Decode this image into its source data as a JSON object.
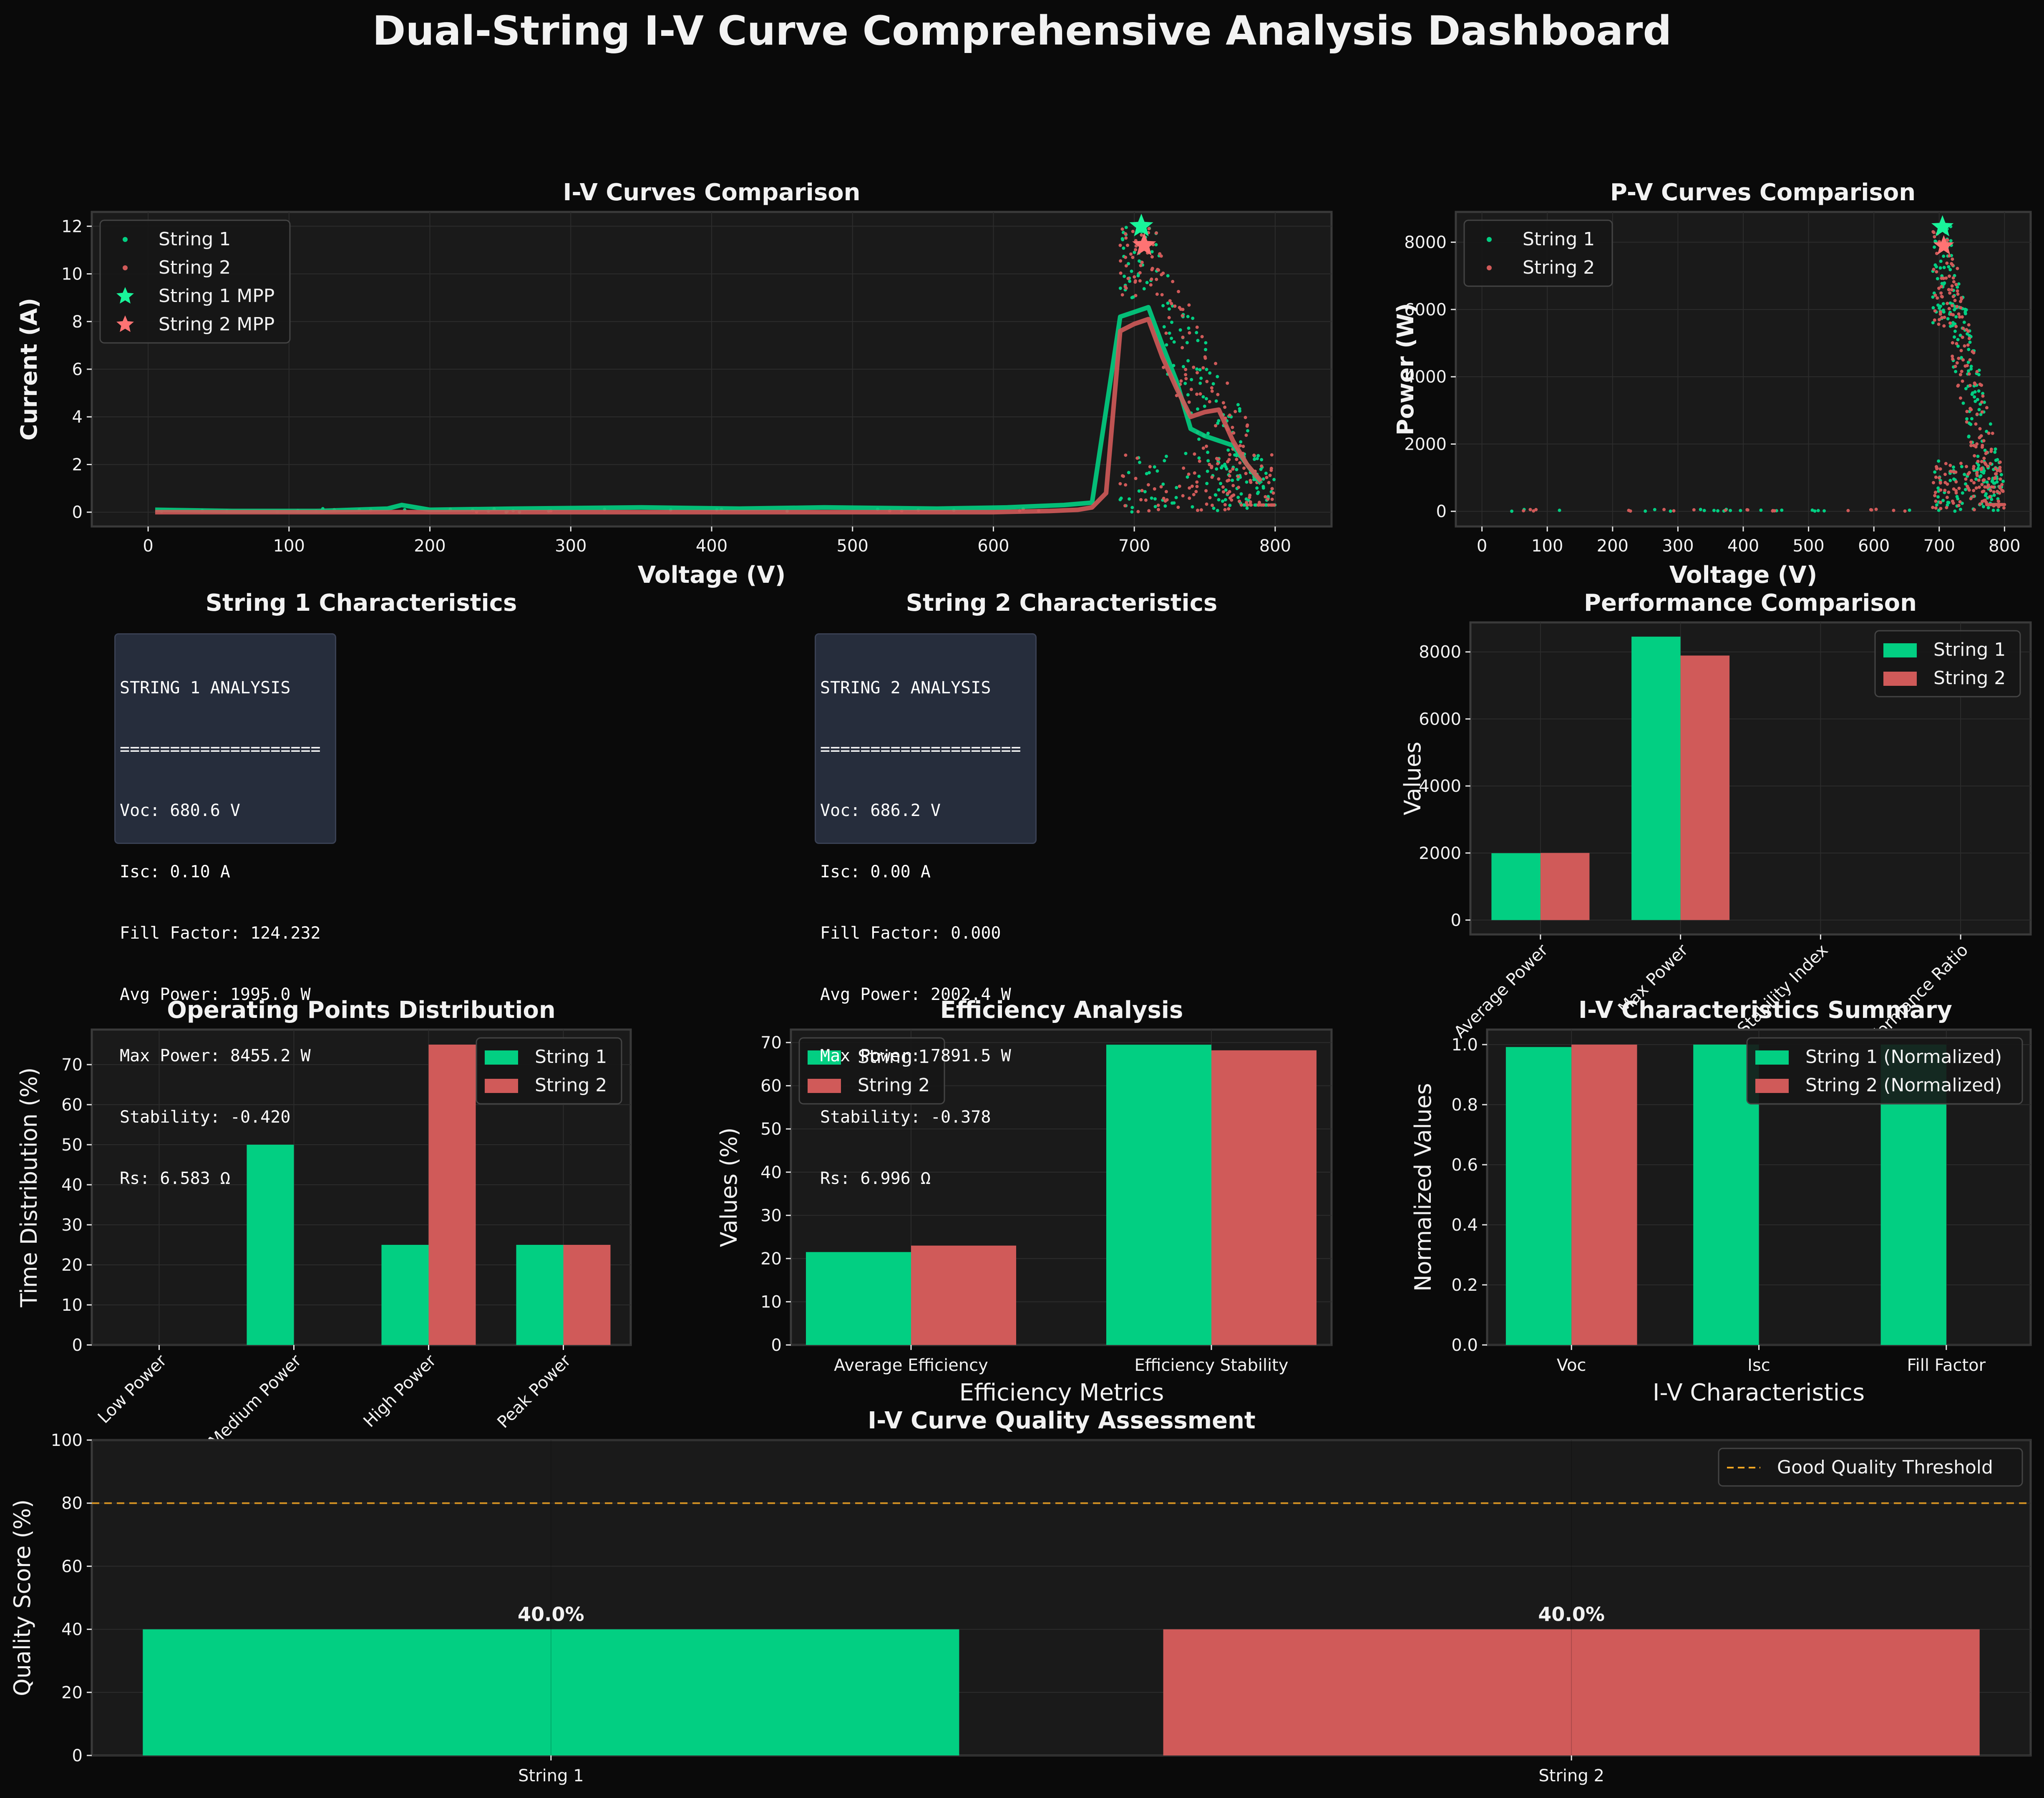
{
  "title": "Dual-String I-V Curve Comprehensive Analysis Dashboard",
  "colors": {
    "s1": "#02cf82",
    "s2": "#d05a59",
    "s1_bright": "#19f59a",
    "s2_bright": "#ff7373",
    "threshold": "#f5a623",
    "bg": "#0a0a0a",
    "panel": "#1a1a1a",
    "text": "#f2f2f2"
  },
  "stats_panels": [
    {
      "title": "String 1 Characteristics",
      "lines": [
        "STRING 1 ANALYSIS",
        "====================",
        "Voc: 680.6 V",
        "Isc: 0.10 A",
        "Fill Factor: 124.232",
        "Avg Power: 1995.0 W",
        "Max Power: 8455.2 W",
        "Stability: -0.420",
        "Rs: 6.583 Ω"
      ]
    },
    {
      "title": "String 2 Characteristics",
      "lines": [
        "STRING 2 ANALYSIS",
        "====================",
        "Voc: 686.2 V",
        "Isc: 0.00 A",
        "Fill Factor: 0.000",
        "Avg Power: 2002.4 W",
        "Max Power: 7891.5 W",
        "Stability: -0.378",
        "Rs: 6.996 Ω"
      ]
    }
  ],
  "chart_data": [
    {
      "id": "iv",
      "type": "line",
      "title": "I-V Curves Comparison",
      "xlabel": "Voltage (V)",
      "ylabel": "Current (A)",
      "xlim": [
        -40,
        840
      ],
      "ylim": [
        -0.6,
        12.6
      ],
      "xticks": [
        0,
        100,
        200,
        300,
        400,
        500,
        600,
        700,
        800
      ],
      "yticks": [
        0,
        2,
        4,
        6,
        8,
        10,
        12
      ],
      "legend": {
        "position": "top-left",
        "entries": [
          "String 1",
          "String 2",
          "String 1 MPP",
          "String 2 MPP"
        ]
      },
      "series": [
        {
          "name": "String 1",
          "x": [
            5,
            60,
            120,
            170,
            180,
            200,
            260,
            350,
            420,
            480,
            560,
            610,
            630,
            650,
            670,
            690,
            700,
            710,
            720,
            730,
            740,
            750,
            760,
            770,
            780,
            790
          ],
          "y": [
            0.1,
            0.05,
            0.05,
            0.15,
            0.3,
            0.1,
            0.15,
            0.2,
            0.15,
            0.2,
            0.15,
            0.2,
            0.25,
            0.3,
            0.4,
            8.2,
            8.4,
            8.6,
            7.0,
            5.5,
            3.5,
            3.2,
            3.0,
            2.8,
            2.0,
            1.2
          ]
        },
        {
          "name": "String 2",
          "x": [
            5,
            100,
            200,
            300,
            400,
            500,
            600,
            640,
            660,
            670,
            680,
            690,
            700,
            710,
            720,
            730,
            740,
            750,
            760,
            770,
            780,
            790
          ],
          "y": [
            0.0,
            0.0,
            0.0,
            0.0,
            0.0,
            0.0,
            0.0,
            0.05,
            0.1,
            0.2,
            0.8,
            7.6,
            7.9,
            8.1,
            6.5,
            5.2,
            4.0,
            4.2,
            4.3,
            3.0,
            2.0,
            1.3
          ]
        }
      ],
      "mpp": [
        {
          "name": "String 1 MPP",
          "x": 705,
          "y": 12.0
        },
        {
          "name": "String 2 MPP",
          "x": 707,
          "y": 11.2
        }
      ]
    },
    {
      "id": "pv",
      "type": "scatter",
      "title": "P-V Curves Comparison",
      "xlabel": "Voltage (V)",
      "ylabel": "Power (W)",
      "xlim": [
        -40,
        840
      ],
      "ylim": [
        -450,
        8900
      ],
      "xticks": [
        0,
        100,
        200,
        300,
        400,
        500,
        600,
        700,
        800
      ],
      "yticks": [
        0,
        2000,
        4000,
        6000,
        8000
      ],
      "legend": {
        "position": "top-left",
        "entries": [
          "String 1",
          "String 2"
        ]
      },
      "series": [
        {
          "name": "String 1"
        },
        {
          "name": "String 2"
        }
      ]
    },
    {
      "id": "perf",
      "type": "bar",
      "title": "Performance Comparison",
      "ylabel": "Values",
      "categories": [
        "Average Power",
        "Max Power",
        "Stability Index",
        "Performance Ratio"
      ],
      "ylim": [
        -430,
        8880
      ],
      "yticks": [
        0,
        2000,
        4000,
        6000,
        8000
      ],
      "legend": {
        "position": "top-right",
        "entries": [
          "String 1",
          "String 2"
        ]
      },
      "series": [
        {
          "name": "String 1",
          "values": [
            1995.0,
            8455.2,
            0,
            0
          ]
        },
        {
          "name": "String 2",
          "values": [
            2002.4,
            7891.5,
            0,
            0
          ]
        }
      ]
    },
    {
      "id": "ops",
      "type": "bar",
      "title": "Operating Points Distribution",
      "ylabel": "Time Distribution (%)",
      "categories": [
        "Low Power",
        "Medium Power",
        "High Power",
        "Peak Power"
      ],
      "ylim": [
        0,
        78.75
      ],
      "yticks": [
        0,
        10,
        20,
        30,
        40,
        50,
        60,
        70
      ],
      "legend": {
        "position": "top-right",
        "entries": [
          "String 1",
          "String 2"
        ]
      },
      "series": [
        {
          "name": "String 1",
          "values": [
            0,
            50,
            25,
            25
          ]
        },
        {
          "name": "String 2",
          "values": [
            0,
            0,
            75,
            25
          ]
        }
      ]
    },
    {
      "id": "eff",
      "type": "bar",
      "title": "Efficiency Analysis",
      "xlabel": "Efficiency Metrics",
      "ylabel": "Values (%)",
      "categories": [
        "Average Efficiency",
        "Efficiency Stability"
      ],
      "ylim": [
        0,
        73
      ],
      "yticks": [
        0,
        10,
        20,
        30,
        40,
        50,
        60,
        70
      ],
      "legend": {
        "position": "top-left",
        "entries": [
          "String 1",
          "String 2"
        ]
      },
      "series": [
        {
          "name": "String 1",
          "values": [
            21.5,
            69.5
          ]
        },
        {
          "name": "String 2",
          "values": [
            23.0,
            68.2
          ]
        }
      ]
    },
    {
      "id": "ivsum",
      "type": "bar",
      "title": "I-V Characteristics Summary",
      "xlabel": "I-V Characteristics",
      "ylabel": "Normalized Values",
      "categories": [
        "Voc",
        "Isc",
        "Fill Factor"
      ],
      "ylim": [
        0,
        1.05
      ],
      "yticks": [
        0.0,
        0.2,
        0.4,
        0.6,
        0.8,
        1.0
      ],
      "legend": {
        "position": "top-right",
        "entries": [
          "String 1 (Normalized)",
          "String 2 (Normalized)"
        ]
      },
      "series": [
        {
          "name": "String 1 (Normalized)",
          "values": [
            0.992,
            1.0,
            1.0
          ]
        },
        {
          "name": "String 2 (Normalized)",
          "values": [
            1.0,
            0.0,
            0.0
          ]
        }
      ]
    },
    {
      "id": "quality",
      "type": "bar",
      "title": "I-V Curve Quality Assessment",
      "ylabel": "Quality Score (%)",
      "categories": [
        "String 1",
        "String 2"
      ],
      "values": [
        40.0,
        40.0
      ],
      "data_labels": [
        "40.0%",
        "40.0%"
      ],
      "ylim": [
        0,
        100
      ],
      "yticks": [
        0,
        20,
        40,
        60,
        80,
        100
      ],
      "threshold": {
        "label": "Good Quality Threshold",
        "value": 80
      },
      "legend": {
        "position": "top-right",
        "entries": [
          "Good Quality Threshold"
        ]
      }
    }
  ]
}
